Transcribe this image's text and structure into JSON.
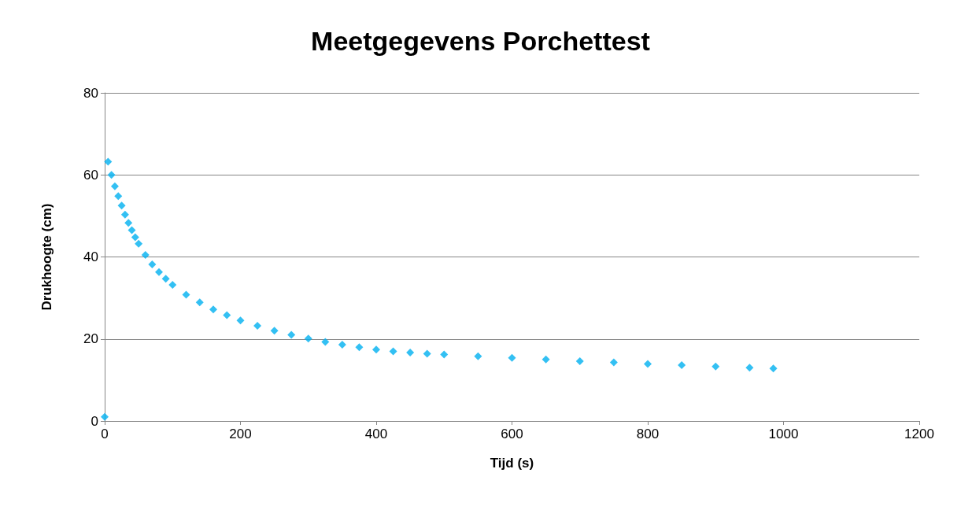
{
  "chart_data": {
    "type": "scatter",
    "title": "Meetgegevens Porchettest",
    "xlabel": "Tijd (s)",
    "ylabel": "Drukhoogte (cm)",
    "x": [
      0,
      5,
      10,
      15,
      20,
      25,
      30,
      35,
      40,
      45,
      50,
      60,
      70,
      80,
      90,
      100,
      120,
      140,
      160,
      180,
      200,
      225,
      250,
      275,
      300,
      325,
      350,
      375,
      400,
      425,
      450,
      475,
      500,
      550,
      600,
      650,
      700,
      750,
      800,
      850,
      900,
      950,
      985
    ],
    "series": [
      {
        "color": "#00b0f0",
        "values": [
          1,
          63.2,
          60,
          57.2,
          54.8,
          52.5,
          50.3,
          48.3,
          46.5,
          44.8,
          43.2,
          40.5,
          38.2,
          36.3,
          34.7,
          33.2,
          30.8,
          28.9,
          27.2,
          25.8,
          24.5,
          23.2,
          22,
          21,
          20.1,
          19.3,
          18.6,
          18,
          17.4,
          17,
          16.7,
          16.4,
          16.2,
          15.8,
          15.4,
          15,
          14.6,
          14.3,
          13.9,
          13.6,
          13.3,
          13,
          12.8
        ]
      }
    ],
    "xlim": [
      0,
      1200
    ],
    "xticks": [
      0,
      200,
      400,
      600,
      800,
      1000,
      1200
    ],
    "ylim": [
      0,
      80
    ],
    "yticks": [
      0,
      20,
      40,
      60,
      80
    ],
    "grid": "y",
    "marker": "diamond"
  }
}
